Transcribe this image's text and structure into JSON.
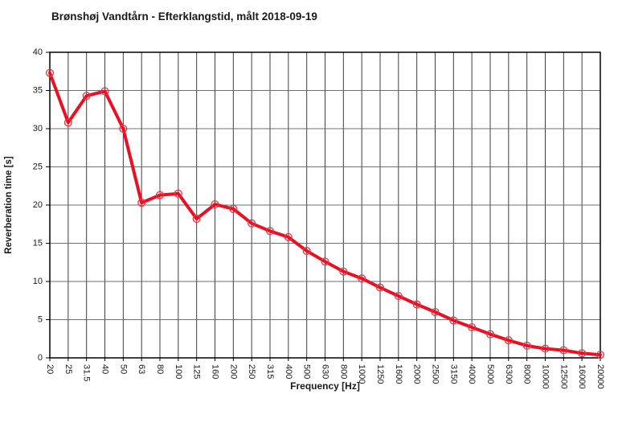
{
  "title": "Brønshøj Vandtårn - Efterklangstid, målt 2018-09-19",
  "chart_data": {
    "type": "line",
    "title": "Brønshøj Vandtårn - Efterklangstid, målt 2018-09-19",
    "xlabel": "Frequency [Hz]",
    "ylabel": "Reverberation time [s]",
    "categories": [
      "20",
      "25",
      "31.5",
      "40",
      "50",
      "63",
      "80",
      "100",
      "125",
      "160",
      "200",
      "250",
      "315",
      "400",
      "500",
      "630",
      "800",
      "1000",
      "1250",
      "1600",
      "2000",
      "2500",
      "3150",
      "4000",
      "5000",
      "6300",
      "8000",
      "10000",
      "12500",
      "16000",
      "20000"
    ],
    "values": [
      37.3,
      30.8,
      34.3,
      34.9,
      30.0,
      20.3,
      21.3,
      21.5,
      18.2,
      20.1,
      19.5,
      17.6,
      16.6,
      15.8,
      14.0,
      12.6,
      11.3,
      10.4,
      9.2,
      8.1,
      7.0,
      6.0,
      4.9,
      4.0,
      3.1,
      2.3,
      1.6,
      1.2,
      1.0,
      0.6,
      0.4
    ],
    "ylim": [
      0,
      40
    ],
    "ytick_step": 5,
    "grid": true,
    "legend_position": "none",
    "marker": "circle-open",
    "colors": {
      "line": "#e81123",
      "marker_stroke": "#ea3347",
      "grid_vertical": "#3f3f3f",
      "grid_horizontal": "#6e6e6e",
      "axis": "#000000",
      "tick_text": "#1a1a1a",
      "background": "#ffffff"
    }
  }
}
